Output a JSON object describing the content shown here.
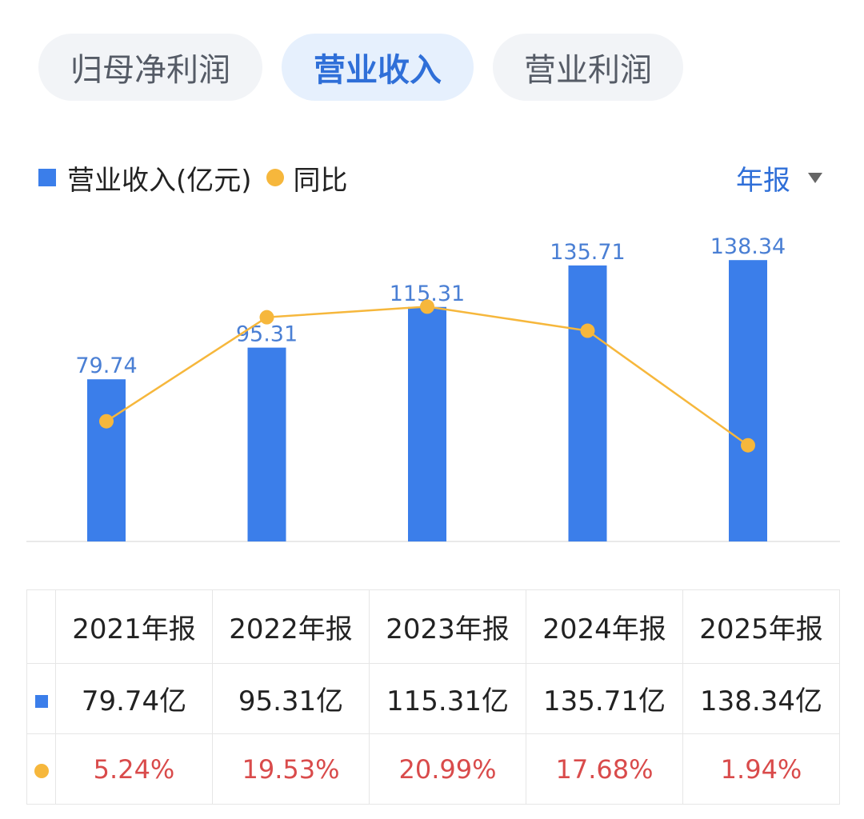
{
  "tabs": [
    {
      "label": "归母净利润",
      "active": false
    },
    {
      "label": "营业收入",
      "active": true
    },
    {
      "label": "营业利润",
      "active": false
    }
  ],
  "legend": {
    "bar_label": "营业收入(亿元)",
    "line_label": "同比"
  },
  "period_selector": {
    "label": "年报"
  },
  "colors": {
    "bar": "#3b7eea",
    "line": "#f6b73c",
    "bar_label": "#4a7fd4",
    "yoy_text": "#d94b4b",
    "accent": "#2f6fd8"
  },
  "chart_data": {
    "type": "bar",
    "categories": [
      "2021年报",
      "2022年报",
      "2023年报",
      "2024年报",
      "2025年报"
    ],
    "series": [
      {
        "name": "营业收入(亿元)",
        "type": "bar",
        "values": [
          79.74,
          95.31,
          115.31,
          135.71,
          138.34
        ]
      },
      {
        "name": "同比",
        "type": "line",
        "values": [
          5.24,
          19.53,
          20.99,
          17.68,
          1.94
        ]
      }
    ],
    "bar_labels": [
      "79.74",
      "95.31",
      "115.31",
      "135.71",
      "138.34"
    ]
  },
  "table": {
    "headers": [
      "2021年报",
      "2022年报",
      "2023年报",
      "2024年报",
      "2025年报"
    ],
    "revenue": [
      "79.74亿",
      "95.31亿",
      "115.31亿",
      "135.71亿",
      "138.34亿"
    ],
    "yoy": [
      "5.24%",
      "19.53%",
      "20.99%",
      "17.68%",
      "1.94%"
    ]
  }
}
